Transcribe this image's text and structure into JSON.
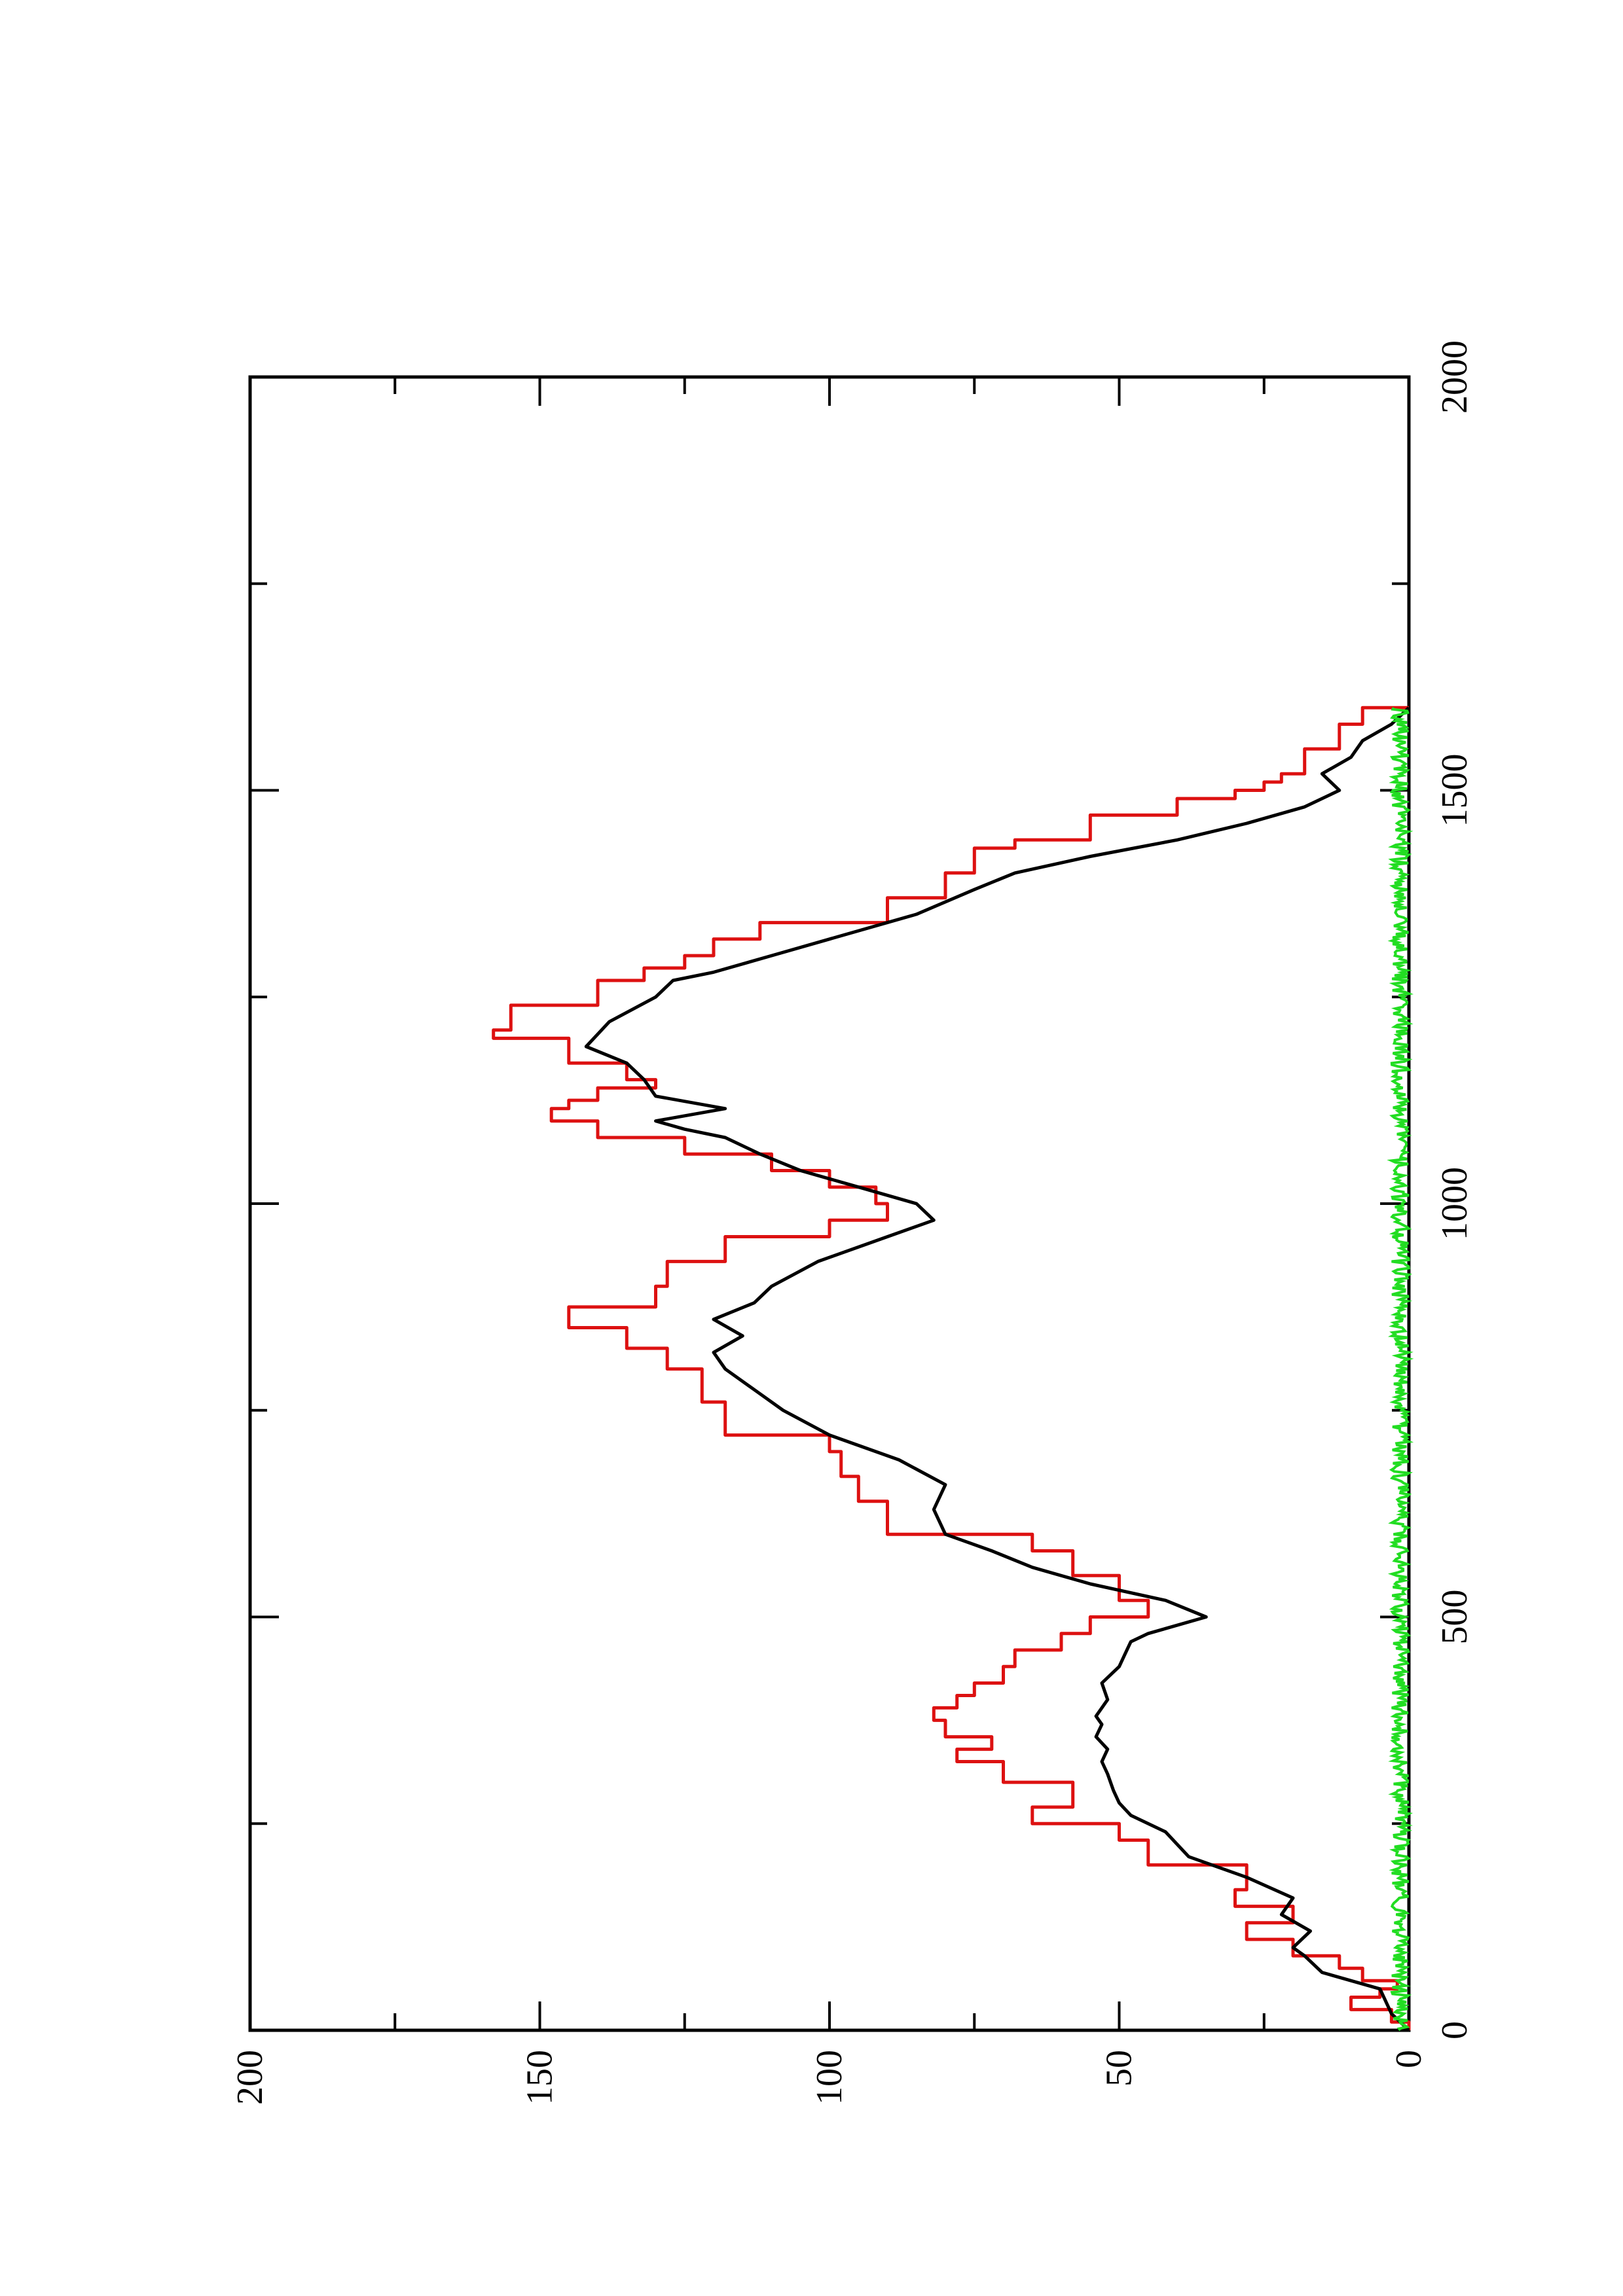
{
  "chart_data": {
    "type": "line",
    "title": "",
    "xlabel": "",
    "ylabel": "",
    "orientation": "rotated 90 degrees counter-clockwise (page in landscape)",
    "xlim": [
      0,
      2000
    ],
    "ylim": [
      0,
      200
    ],
    "x_ticks": [
      0,
      500,
      1000,
      1500,
      2000
    ],
    "y_ticks": [
      0,
      50,
      100,
      150,
      200
    ],
    "x_tick_labels": [
      "0",
      "500",
      "1000",
      "1500",
      "2000"
    ],
    "y_tick_labels": [
      "0",
      "50",
      "100",
      "150",
      "200"
    ],
    "x_minor_step": 250,
    "y_minor_step": 25,
    "grid": false,
    "legend": "none",
    "series": [
      {
        "color": "#dd1111",
        "step": true,
        "points": [
          [
            0,
            0
          ],
          [
            10,
            3
          ],
          [
            25,
            10
          ],
          [
            40,
            5
          ],
          [
            50,
            2
          ],
          [
            60,
            8
          ],
          [
            75,
            12
          ],
          [
            90,
            20
          ],
          [
            110,
            28
          ],
          [
            130,
            20
          ],
          [
            150,
            30
          ],
          [
            170,
            28
          ],
          [
            200,
            45
          ],
          [
            230,
            50
          ],
          [
            250,
            65
          ],
          [
            270,
            58
          ],
          [
            300,
            70
          ],
          [
            325,
            78
          ],
          [
            340,
            72
          ],
          [
            355,
            80
          ],
          [
            375,
            82
          ],
          [
            390,
            78
          ],
          [
            405,
            75
          ],
          [
            420,
            70
          ],
          [
            440,
            68
          ],
          [
            460,
            60
          ],
          [
            480,
            55
          ],
          [
            500,
            45
          ],
          [
            520,
            50
          ],
          [
            550,
            58
          ],
          [
            580,
            65
          ],
          [
            600,
            90
          ],
          [
            640,
            95
          ],
          [
            670,
            98
          ],
          [
            700,
            100
          ],
          [
            720,
            118
          ],
          [
            760,
            122
          ],
          [
            800,
            128
          ],
          [
            825,
            135
          ],
          [
            850,
            145
          ],
          [
            875,
            130
          ],
          [
            900,
            128
          ],
          [
            930,
            118
          ],
          [
            960,
            100
          ],
          [
            980,
            90
          ],
          [
            1000,
            92
          ],
          [
            1020,
            100
          ],
          [
            1040,
            110
          ],
          [
            1060,
            125
          ],
          [
            1080,
            140
          ],
          [
            1100,
            148
          ],
          [
            1115,
            145
          ],
          [
            1125,
            140
          ],
          [
            1140,
            130
          ],
          [
            1150,
            135
          ],
          [
            1170,
            145
          ],
          [
            1200,
            158
          ],
          [
            1210,
            155
          ],
          [
            1240,
            140
          ],
          [
            1270,
            132
          ],
          [
            1285,
            125
          ],
          [
            1300,
            120
          ],
          [
            1320,
            112
          ],
          [
            1340,
            90
          ],
          [
            1370,
            80
          ],
          [
            1400,
            75
          ],
          [
            1430,
            68
          ],
          [
            1440,
            55
          ],
          [
            1470,
            40
          ],
          [
            1490,
            30
          ],
          [
            1500,
            25
          ],
          [
            1510,
            22
          ],
          [
            1520,
            18
          ],
          [
            1550,
            12
          ],
          [
            1580,
            8
          ],
          [
            1600,
            0
          ]
        ]
      },
      {
        "color": "#000000",
        "step": false,
        "points": [
          [
            0,
            0
          ],
          [
            20,
            3
          ],
          [
            50,
            5
          ],
          [
            70,
            15
          ],
          [
            90,
            18
          ],
          [
            100,
            20
          ],
          [
            120,
            17
          ],
          [
            140,
            22
          ],
          [
            160,
            20
          ],
          [
            185,
            28
          ],
          [
            210,
            38
          ],
          [
            240,
            42
          ],
          [
            260,
            48
          ],
          [
            275,
            50
          ],
          [
            290,
            51
          ],
          [
            310,
            52
          ],
          [
            325,
            53
          ],
          [
            340,
            52
          ],
          [
            355,
            54
          ],
          [
            370,
            53
          ],
          [
            380,
            54
          ],
          [
            400,
            52
          ],
          [
            420,
            53
          ],
          [
            440,
            50
          ],
          [
            455,
            49
          ],
          [
            470,
            48
          ],
          [
            480,
            45
          ],
          [
            500,
            35
          ],
          [
            520,
            42
          ],
          [
            540,
            55
          ],
          [
            560,
            65
          ],
          [
            580,
            72
          ],
          [
            600,
            80
          ],
          [
            630,
            82
          ],
          [
            660,
            80
          ],
          [
            690,
            88
          ],
          [
            720,
            100
          ],
          [
            750,
            108
          ],
          [
            770,
            112
          ],
          [
            800,
            118
          ],
          [
            820,
            120
          ],
          [
            840,
            115
          ],
          [
            860,
            120
          ],
          [
            880,
            113
          ],
          [
            900,
            110
          ],
          [
            930,
            102
          ],
          [
            960,
            90
          ],
          [
            980,
            82
          ],
          [
            1000,
            85
          ],
          [
            1020,
            95
          ],
          [
            1040,
            105
          ],
          [
            1060,
            112
          ],
          [
            1080,
            118
          ],
          [
            1090,
            125
          ],
          [
            1100,
            130
          ],
          [
            1115,
            118
          ],
          [
            1130,
            130
          ],
          [
            1150,
            132
          ],
          [
            1170,
            135
          ],
          [
            1190,
            142
          ],
          [
            1205,
            140
          ],
          [
            1220,
            138
          ],
          [
            1250,
            130
          ],
          [
            1270,
            127
          ],
          [
            1280,
            120
          ],
          [
            1300,
            110
          ],
          [
            1320,
            100
          ],
          [
            1350,
            85
          ],
          [
            1380,
            75
          ],
          [
            1400,
            68
          ],
          [
            1420,
            55
          ],
          [
            1440,
            40
          ],
          [
            1460,
            28
          ],
          [
            1480,
            18
          ],
          [
            1500,
            12
          ],
          [
            1520,
            15
          ],
          [
            1540,
            10
          ],
          [
            1560,
            8
          ],
          [
            1580,
            3
          ],
          [
            1600,
            0
          ]
        ]
      },
      {
        "color": "#22dd22",
        "step": false,
        "noise_band": [
          0,
          3
        ],
        "x_range": [
          0,
          1600
        ]
      }
    ]
  }
}
